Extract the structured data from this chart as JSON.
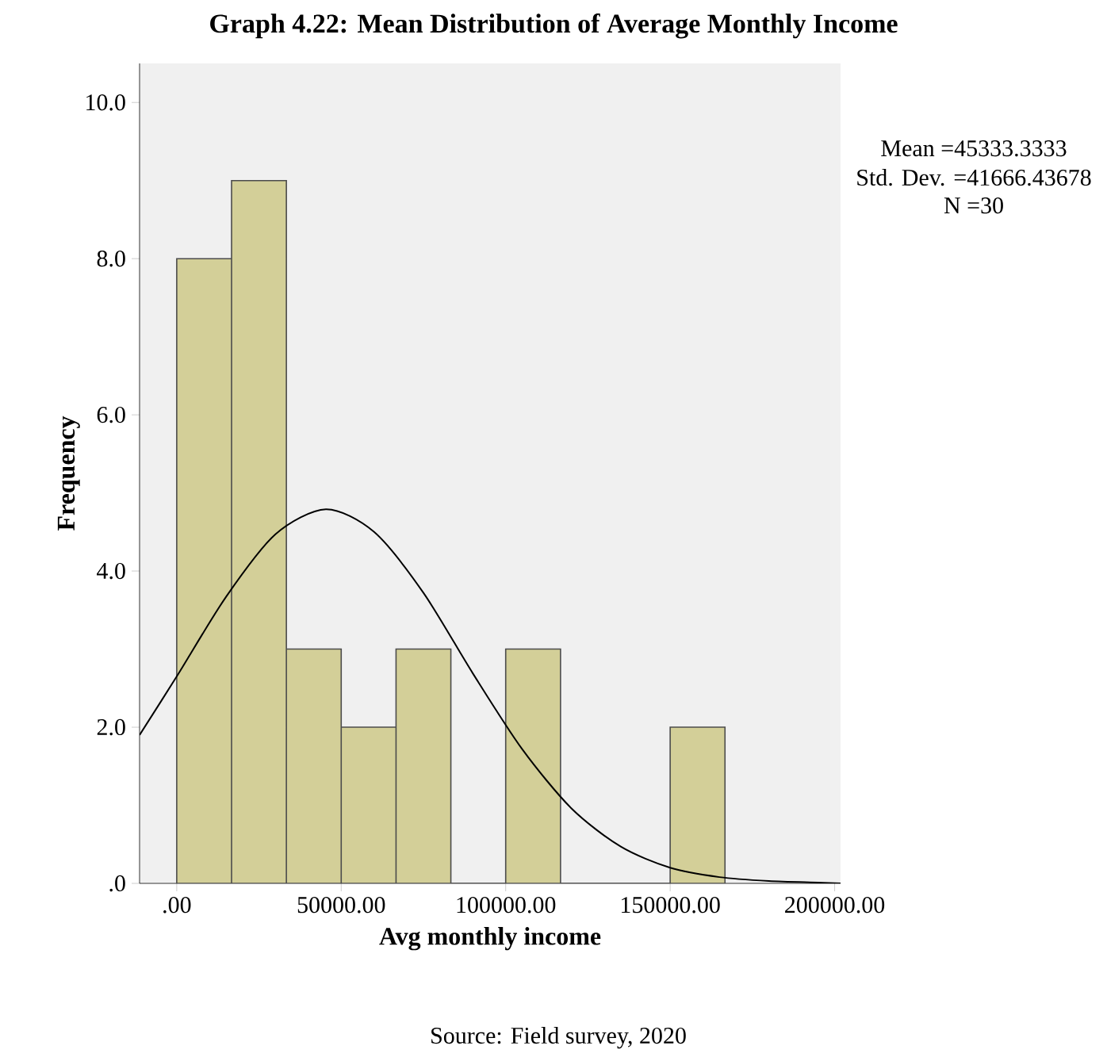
{
  "chart_data": {
    "type": "histogram",
    "title": "Graph 4.22: Mean Distribution of Average Monthly Income",
    "xlabel": "Avg monthly income",
    "ylabel": "Frequency",
    "series": [
      {
        "color": "#d3cf98",
        "bins": [
          0,
          16667,
          33333,
          50000,
          66667,
          83333,
          100000,
          116667,
          133333,
          150000,
          166667
        ],
        "values": [
          8,
          9,
          3,
          2,
          3,
          0,
          3,
          0,
          0,
          2
        ]
      },
      {
        "type": "line",
        "color": "#000000",
        "x": [
          -11300,
          0,
          15000,
          30000,
          45333,
          60000,
          75000,
          90000,
          105000,
          120000,
          135000,
          150000,
          165000,
          180000,
          195000,
          201800
        ],
        "values": [
          1.9,
          2.65,
          3.67,
          4.47,
          4.79,
          4.5,
          3.72,
          2.69,
          1.72,
          0.96,
          0.47,
          0.2,
          0.08,
          0.03,
          0.01,
          0.0
        ]
      }
    ],
    "xlim": [
      -11300,
      201800
    ],
    "ylim": [
      0,
      10.5
    ],
    "xticks": [
      {
        "value": 0,
        "label": ".00"
      },
      {
        "value": 50000,
        "label": "50000.00"
      },
      {
        "value": 100000,
        "label": "100000.00"
      },
      {
        "value": 150000,
        "label": "150000.00"
      },
      {
        "value": 200000,
        "label": "200000.00"
      }
    ],
    "yticks": [
      {
        "value": 0,
        "label": ".0"
      },
      {
        "value": 2,
        "label": "2.0"
      },
      {
        "value": 4,
        "label": "4.0"
      },
      {
        "value": 6,
        "label": "6.0"
      },
      {
        "value": 8,
        "label": "8.0"
      },
      {
        "value": 10,
        "label": "10.0"
      }
    ],
    "grid": false,
    "annotations": [
      "Mean =45333.3333",
      "Std. Dev. =41666.43678",
      "N =30",
      "Source: Field survey, 2020"
    ]
  }
}
